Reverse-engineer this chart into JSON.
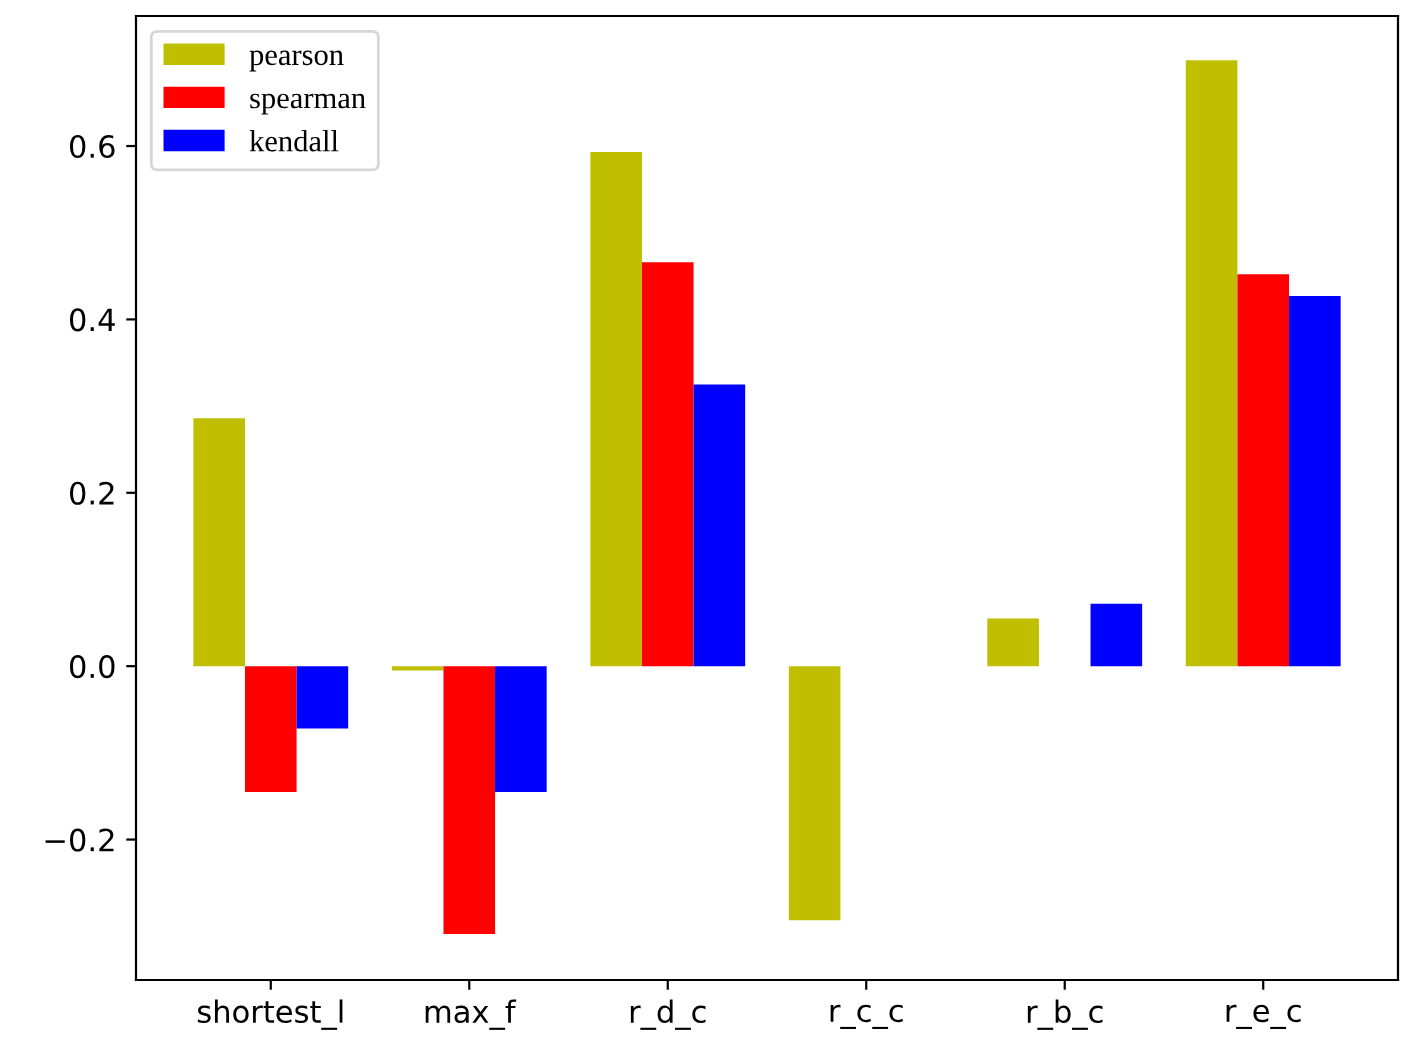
{
  "chart_data": {
    "type": "bar",
    "categories": [
      "shortest_l",
      "max_f",
      "r_d_c",
      "r_c_c",
      "r_b_c",
      "r_e_c"
    ],
    "series": [
      {
        "name": "pearson",
        "color": "#bfbf00",
        "values": [
          0.286,
          -0.005,
          0.593,
          -0.293,
          0.055,
          0.699
        ]
      },
      {
        "name": "spearman",
        "color": "#ff0000",
        "values": [
          -0.145,
          -0.309,
          0.466,
          0,
          0,
          0.452
        ]
      },
      {
        "name": "kendall",
        "color": "#0000ff",
        "values": [
          -0.072,
          -0.145,
          0.325,
          0,
          0.072,
          0.427
        ]
      }
    ],
    "ylim": [
      -0.362,
      0.75
    ],
    "yticks": [
      {
        "value": -0.2,
        "label": "−0.2"
      },
      {
        "value": 0.0,
        "label": "0.0"
      },
      {
        "value": 0.2,
        "label": "0.2"
      },
      {
        "value": 0.4,
        "label": "0.4"
      },
      {
        "value": 0.6,
        "label": "0.6"
      }
    ],
    "grid": false,
    "legend": "top left"
  }
}
